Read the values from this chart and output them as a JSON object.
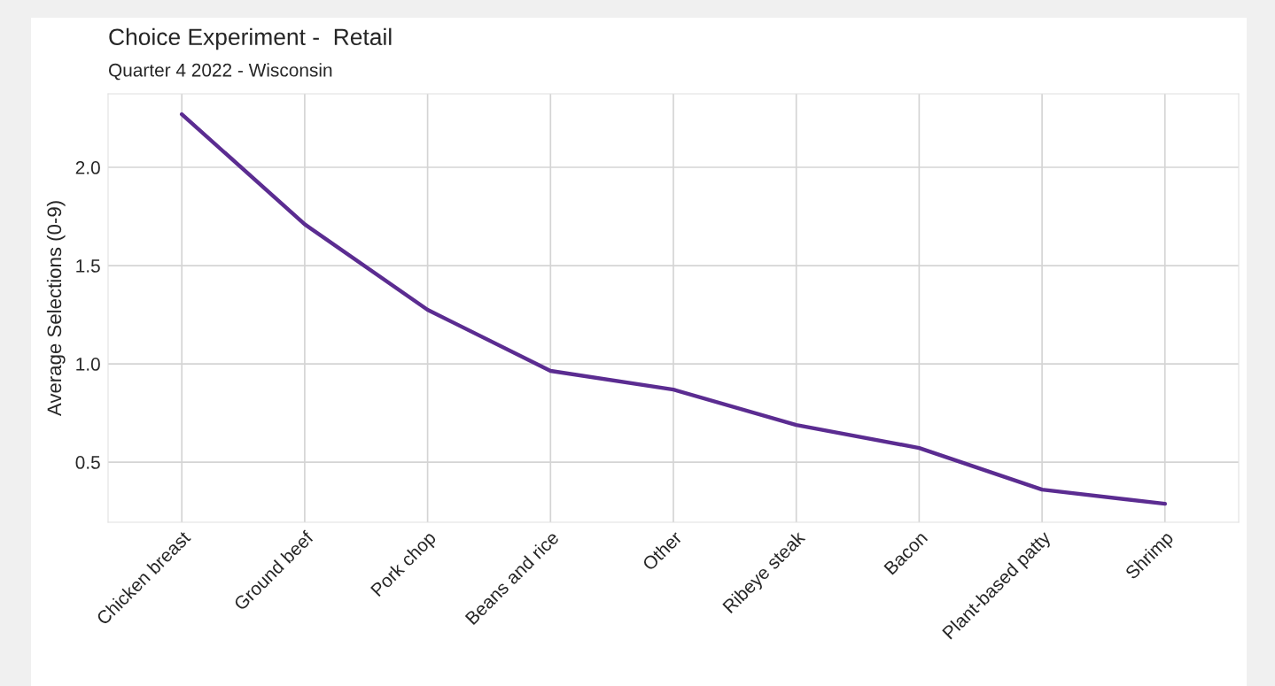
{
  "chart_data": {
    "type": "line",
    "title": "Choice Experiment -  Retail",
    "subtitle": "Quarter 4 2022 - Wisconsin",
    "ylabel": "Average Selections (0-9)",
    "categories": [
      "Chicken breast",
      "Ground beef",
      "Pork chop",
      "Beans and rice",
      "Other",
      "Ribeye steak",
      "Bacon",
      "Plant-based patty",
      "Shrimp"
    ],
    "series": [
      {
        "color": "#5b2c91",
        "values": [
          2.27,
          1.71,
          1.275,
          0.964,
          0.869,
          0.689,
          0.572,
          0.36,
          0.288
        ]
      }
    ],
    "ylim": [
      0.194,
      2.374
    ],
    "yticks": [
      {
        "value": 0.5,
        "label": "0.5"
      },
      {
        "value": 1.0,
        "label": "1.0"
      },
      {
        "value": 1.5,
        "label": "1.5"
      },
      {
        "value": 2.0,
        "label": "2.0"
      }
    ],
    "grid": true,
    "marker": "none",
    "line_style": "solid"
  }
}
